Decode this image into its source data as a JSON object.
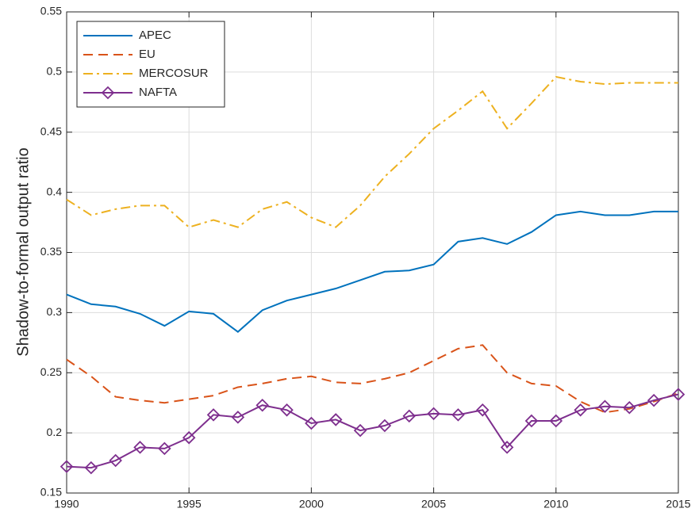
{
  "chart_data": {
    "type": "line",
    "ylabel": "Shadow-to-formal output ratio",
    "x": [
      1990,
      1991,
      1992,
      1993,
      1994,
      1995,
      1996,
      1997,
      1998,
      1999,
      2000,
      2001,
      2002,
      2003,
      2004,
      2005,
      2006,
      2007,
      2008,
      2009,
      2010,
      2011,
      2012,
      2013,
      2014,
      2015
    ],
    "xlim": [
      1990,
      2015
    ],
    "xticks": [
      1990,
      1995,
      2000,
      2005,
      2010,
      2015
    ],
    "ylim": [
      0.15,
      0.55
    ],
    "yticks": [
      0.15,
      0.2,
      0.25,
      0.3,
      0.35,
      0.4,
      0.45,
      0.5,
      0.55
    ],
    "grid": true,
    "legend": "upper left",
    "series": [
      {
        "name": "APEC",
        "color": "#0072BD",
        "linestyle": "solid",
        "values": [
          0.315,
          0.307,
          0.305,
          0.299,
          0.289,
          0.301,
          0.299,
          0.284,
          0.302,
          0.31,
          0.315,
          0.32,
          0.327,
          0.334,
          0.335,
          0.34,
          0.359,
          0.362,
          0.357,
          0.367,
          0.381,
          0.384,
          0.381,
          0.381,
          0.384,
          0.384
        ]
      },
      {
        "name": "EU",
        "color": "#D95319",
        "linestyle": "dashed",
        "values": [
          0.261,
          0.247,
          0.23,
          0.227,
          0.225,
          0.228,
          0.231,
          0.238,
          0.241,
          0.245,
          0.247,
          0.242,
          0.241,
          0.245,
          0.25,
          0.26,
          0.27,
          0.273,
          0.25,
          0.241,
          0.239,
          0.226,
          0.217,
          0.22,
          0.226,
          0.233
        ]
      },
      {
        "name": "MERCOSUR",
        "color": "#EDB120",
        "linestyle": "dashdot",
        "values": [
          0.394,
          0.381,
          0.386,
          0.389,
          0.389,
          0.371,
          0.377,
          0.371,
          0.386,
          0.392,
          0.379,
          0.371,
          0.389,
          0.413,
          0.432,
          0.453,
          0.468,
          0.484,
          0.453,
          0.474,
          0.496,
          0.492,
          0.49,
          0.491,
          0.491,
          0.491
        ]
      },
      {
        "name": "NAFTA",
        "color": "#7E2F8E",
        "linestyle": "solid",
        "marker": "diamond",
        "values": [
          0.172,
          0.171,
          0.177,
          0.188,
          0.187,
          0.196,
          0.215,
          0.213,
          0.223,
          0.219,
          0.208,
          0.211,
          0.202,
          0.206,
          0.214,
          0.216,
          0.215,
          0.219,
          0.188,
          0.21,
          0.21,
          0.219,
          0.222,
          0.221,
          0.227,
          0.232
        ]
      }
    ]
  }
}
